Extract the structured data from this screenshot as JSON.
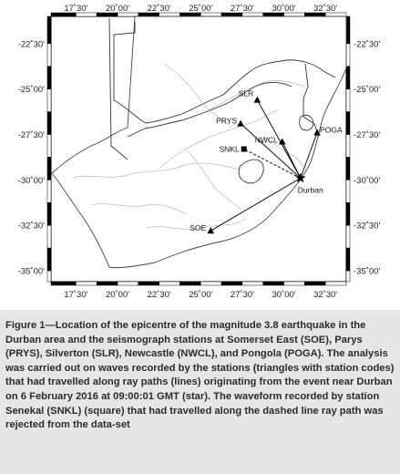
{
  "map": {
    "lon_ticks": [
      "17˚30'",
      "20˚00'",
      "22˚30'",
      "25˚00'",
      "27˚30'",
      "30˚00'",
      "32˚30'"
    ],
    "lat_ticks": [
      "-22˚30'",
      "-25˚00'",
      "-27˚30'",
      "-30˚00'",
      "-32˚30'",
      "-35˚00'"
    ],
    "stations": [
      {
        "code": "SLR",
        "lon": 28.4,
        "lat": -25.6,
        "symbol": "triangle"
      },
      {
        "code": "PRYS",
        "lon": 27.4,
        "lat": -26.9,
        "symbol": "triangle"
      },
      {
        "code": "NWCL",
        "lon": 29.9,
        "lat": -27.9,
        "symbol": "triangle"
      },
      {
        "code": "POGA",
        "lon": 32.0,
        "lat": -27.4,
        "symbol": "triangle"
      },
      {
        "code": "SOE",
        "lon": 25.6,
        "lat": -32.8,
        "symbol": "triangle"
      },
      {
        "code": "SNKL",
        "lon": 27.6,
        "lat": -28.3,
        "symbol": "square"
      }
    ],
    "epicentre": {
      "label": "Durban",
      "lon": 31.0,
      "lat": -29.9,
      "symbol": "star"
    },
    "ray_paths": [
      {
        "station": "SLR",
        "style": "solid"
      },
      {
        "station": "PRYS",
        "style": "solid"
      },
      {
        "station": "NWCL",
        "style": "solid"
      },
      {
        "station": "POGA",
        "style": "solid"
      },
      {
        "station": "SOE",
        "style": "solid"
      },
      {
        "station": "SNKL",
        "style": "dashed"
      }
    ]
  },
  "caption": {
    "text": "Figure 1—Location of the epicentre of the magnitude 3.8 earthquake in the Durban area and the seismograph stations at Somerset East (SOE), Parys (PRYS), Silverton (SLR), Newcastle (NWCL), and Pongola (POGA). The analysis was carried out on waves recorded by the stations (triangles with station codes) that had travelled along ray paths (lines) originating from the event near Durban on 6 February 2016 at 09:00:01 GMT (star). The waveform recorded by station Senekal (SNKL) (square) that had travelled along the dashed line ray path was rejected from the data-set"
  },
  "colors": {
    "land_fill": "#ffffff",
    "border": "#222222",
    "rivers": "#b8b8b8",
    "caption_bg": "#e6e6e6"
  }
}
